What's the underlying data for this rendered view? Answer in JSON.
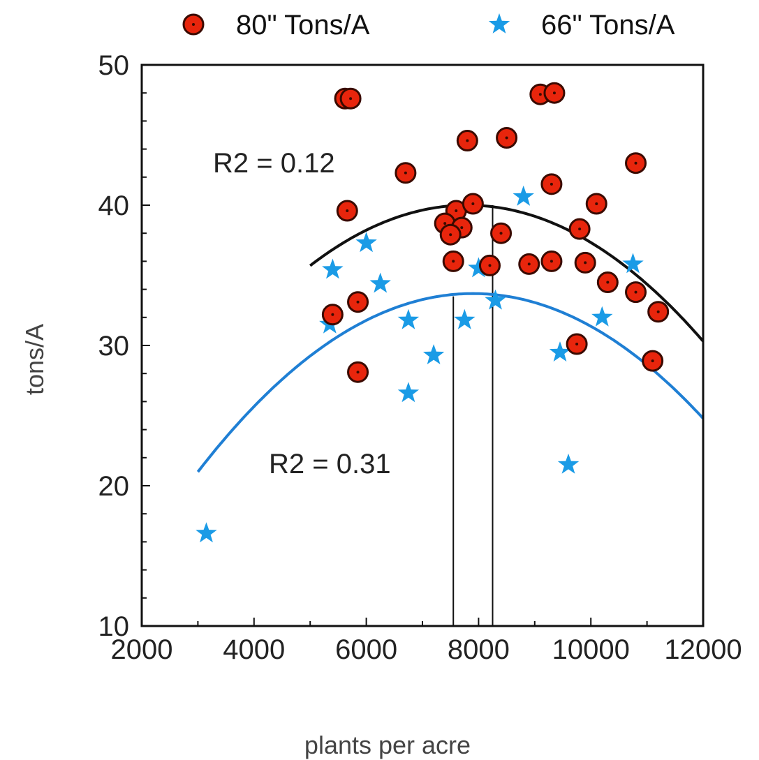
{
  "chart_data": {
    "type": "scatter",
    "title": "",
    "xlabel": "plants per acre",
    "ylabel": "tons/A",
    "xlim": [
      2000,
      12000
    ],
    "ylim": [
      10,
      50
    ],
    "xticks": [
      2000,
      4000,
      6000,
      8000,
      10000,
      12000
    ],
    "yticks": [
      10,
      20,
      30,
      40,
      50
    ],
    "x_minor_step": 1000,
    "y_minor_step": 2,
    "grid": false,
    "legend_position": "top",
    "series": [
      {
        "name": "80\" Tons/A",
        "marker": "circle",
        "color": "#e8250c",
        "points": [
          [
            5620,
            47.6
          ],
          [
            5720,
            47.6
          ],
          [
            9100,
            47.9
          ],
          [
            9350,
            48.0
          ],
          [
            7800,
            44.6
          ],
          [
            8500,
            44.8
          ],
          [
            6700,
            42.3
          ],
          [
            10800,
            43.0
          ],
          [
            9300,
            41.5
          ],
          [
            10100,
            40.1
          ],
          [
            5660,
            39.6
          ],
          [
            7600,
            39.6
          ],
          [
            7900,
            40.1
          ],
          [
            7400,
            38.7
          ],
          [
            7700,
            38.4
          ],
          [
            7500,
            37.9
          ],
          [
            8400,
            38.0
          ],
          [
            9800,
            38.3
          ],
          [
            7550,
            36.0
          ],
          [
            8200,
            35.7
          ],
          [
            8900,
            35.8
          ],
          [
            9300,
            36.0
          ],
          [
            9900,
            35.9
          ],
          [
            10300,
            34.5
          ],
          [
            10800,
            33.8
          ],
          [
            11200,
            32.4
          ],
          [
            5400,
            32.2
          ],
          [
            5850,
            33.1
          ],
          [
            5850,
            28.1
          ],
          [
            9750,
            30.1
          ],
          [
            11100,
            28.9
          ]
        ],
        "fit": {
          "type": "quadratic",
          "x_range": [
            5000,
            12000
          ],
          "vertex": [
            7800,
            40.0
          ],
          "r2": 0.12,
          "r2_label": "R2 = 0.12",
          "color": "#111111"
        }
      },
      {
        "name": "66\" Tons/A",
        "marker": "star",
        "color": "#1a9be6",
        "points": [
          [
            3150,
            16.6
          ],
          [
            5400,
            35.4
          ],
          [
            5350,
            31.5
          ],
          [
            6000,
            37.3
          ],
          [
            6250,
            34.4
          ],
          [
            6750,
            31.8
          ],
          [
            6750,
            26.6
          ],
          [
            7200,
            29.3
          ],
          [
            7750,
            31.8
          ],
          [
            8000,
            35.5
          ],
          [
            8300,
            33.2
          ],
          [
            8800,
            40.6
          ],
          [
            9450,
            29.5
          ],
          [
            9600,
            21.5
          ],
          [
            10200,
            32.0
          ],
          [
            10750,
            35.8
          ]
        ],
        "fit": {
          "type": "quadratic",
          "x_range": [
            3000,
            12000
          ],
          "vertex": [
            7900,
            33.7
          ],
          "r2": 0.31,
          "r2_label": "R2 = 0.31",
          "color": "#1f7fd4"
        }
      }
    ],
    "vertical_lines": [
      {
        "x": 7550,
        "y_top": 33.5
      },
      {
        "x": 8250,
        "y_top": 40.0
      }
    ]
  }
}
